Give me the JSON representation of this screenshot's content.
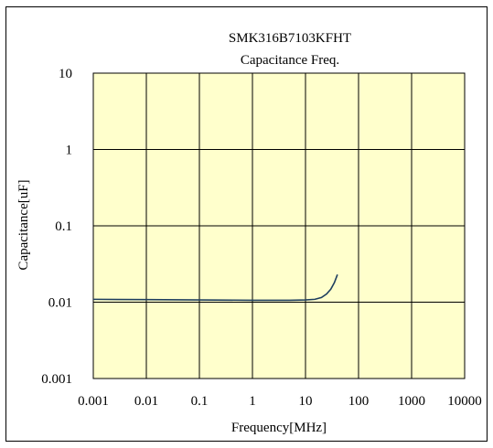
{
  "chart_data": {
    "type": "line",
    "title": "SMK316B7103KFHT",
    "subtitle": "Capacitance Freq.",
    "xlabel": "Frequency[MHz]",
    "ylabel": "Capacitance[uF]",
    "x_scale": "log",
    "y_scale": "log",
    "xlim": [
      0.001,
      10000
    ],
    "ylim": [
      0.001,
      10
    ],
    "x_ticks": [
      "0.001",
      "0.01",
      "0.1",
      "1",
      "10",
      "100",
      "1000",
      "10000"
    ],
    "y_ticks": [
      "0.001",
      "0.01",
      "0.1",
      "1",
      "10"
    ],
    "grid": true,
    "plot_background": "#ffffcc",
    "series": [
      {
        "color": "#1f3f5f",
        "x": [
          0.001,
          0.01,
          0.1,
          1,
          5,
          10,
          15,
          20,
          25,
          30,
          35,
          40
        ],
        "y": [
          0.0109,
          0.0108,
          0.0107,
          0.0106,
          0.0106,
          0.0107,
          0.0109,
          0.0115,
          0.0128,
          0.0148,
          0.018,
          0.023
        ]
      }
    ]
  }
}
